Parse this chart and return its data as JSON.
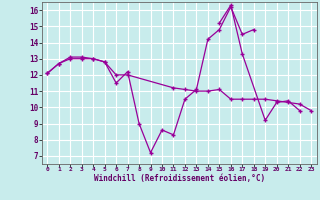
{
  "xlabel": "Windchill (Refroidissement éolien,°C)",
  "background_color": "#c8ecec",
  "grid_color": "#b0d8d8",
  "line_color": "#990099",
  "xmin": 0,
  "xmax": 23,
  "ymin": 7,
  "ymax": 16,
  "series": [
    {
      "x": [
        0,
        1,
        2,
        3,
        4,
        5,
        6,
        7,
        11,
        12,
        13,
        14,
        15,
        16,
        17,
        18,
        19,
        20,
        21,
        22,
        23
      ],
      "y": [
        12.1,
        12.7,
        13.0,
        13.0,
        13.0,
        12.8,
        12.0,
        12.0,
        11.2,
        11.1,
        11.0,
        11.0,
        11.1,
        10.5,
        10.5,
        10.5,
        10.5,
        10.4,
        10.3,
        10.2,
        9.8
      ]
    },
    {
      "x": [
        0,
        1,
        2,
        3,
        4,
        5,
        6,
        7,
        8,
        9,
        10,
        11,
        12,
        13,
        14,
        15,
        16,
        17,
        18
      ],
      "y": [
        12.1,
        12.7,
        13.1,
        13.1,
        13.0,
        12.8,
        11.5,
        12.2,
        9.0,
        7.2,
        8.6,
        8.3,
        10.5,
        11.1,
        14.2,
        14.8,
        16.2,
        14.5,
        14.8
      ]
    },
    {
      "x": [
        15,
        16,
        17,
        19,
        20,
        21,
        22
      ],
      "y": [
        15.2,
        16.3,
        13.3,
        9.2,
        10.3,
        10.4,
        9.8
      ]
    }
  ]
}
